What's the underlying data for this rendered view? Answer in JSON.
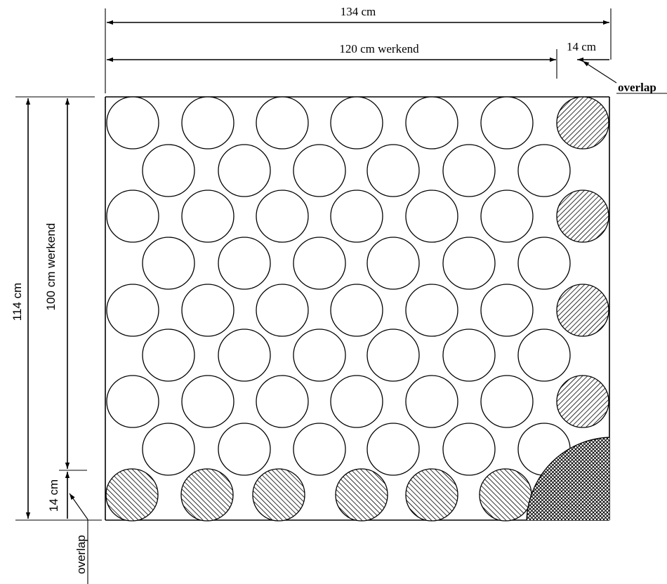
{
  "labels": {
    "total_width": "134 cm",
    "working_width": "120 cm  werkend",
    "overlap_width": "14 cm",
    "overlap_right": "overlap",
    "total_height": "114 cm",
    "working_height": "100 cm werkend",
    "overlap_height": "14 cm",
    "overlap_bottom": "overlap"
  },
  "pattern": {
    "rows_full": 4,
    "rows_offset": 4,
    "full_row_circles": 7,
    "offset_row_circles": 6,
    "hatched_right_column": true,
    "hatched_bottom_row": true,
    "crosshatched_corner": true
  }
}
